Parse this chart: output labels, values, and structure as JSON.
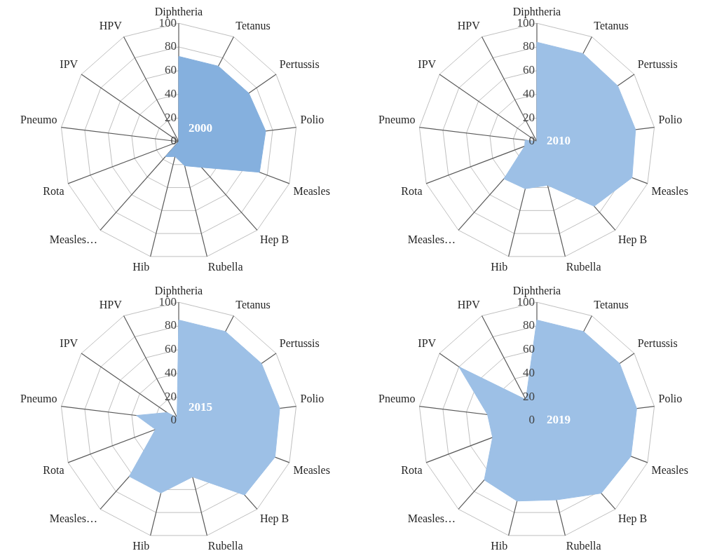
{
  "chart_data": [
    {
      "type": "radar",
      "categories": [
        "Diphtheria",
        "Tetanus",
        "Pertussis",
        "Polio",
        "Measles",
        "Hep B",
        "Rubella",
        "Hib",
        "Measles…",
        "Rota",
        "Pneumo",
        "IPV",
        "HPV"
      ],
      "series": [
        {
          "name": "2000",
          "color": "#85b0de",
          "values": [
            72,
            72,
            72,
            74,
            73,
            29,
            21,
            13,
            17,
            0,
            0,
            0,
            0
          ]
        }
      ],
      "ylim": [
        0,
        100
      ],
      "yticks": [
        0,
        20,
        40,
        60,
        80,
        100
      ],
      "grid": true
    },
    {
      "type": "radar",
      "categories": [
        "Diphtheria",
        "Tetanus",
        "Pertussis",
        "Polio",
        "Measles",
        "Hep B",
        "Rubella",
        "Hib",
        "Measles…",
        "Rota",
        "Pneumo",
        "IPV",
        "HPV"
      ],
      "series": [
        {
          "name": "2010",
          "color": "#9dc0e6",
          "values": [
            84,
            84,
            83,
            84,
            86,
            73,
            38,
            41,
            42,
            11,
            10,
            0,
            0
          ]
        }
      ],
      "ylim": [
        0,
        100
      ],
      "yticks": [
        0,
        20,
        40,
        60,
        80,
        100
      ],
      "grid": true
    },
    {
      "type": "radar",
      "categories": [
        "Diphtheria",
        "Tetanus",
        "Pertussis",
        "Polio",
        "Measles",
        "Hep B",
        "Rubella",
        "Hib",
        "Measles…",
        "Rota",
        "Pneumo",
        "IPV",
        "HPV"
      ],
      "series": [
        {
          "name": "2015",
          "color": "#9dc0e6",
          "values": [
            85,
            85,
            85,
            86,
            87,
            84,
            49,
            63,
            63,
            21,
            36,
            12,
            3
          ]
        }
      ],
      "ylim": [
        0,
        100
      ],
      "yticks": [
        0,
        20,
        40,
        60,
        80,
        100
      ],
      "grid": true
    },
    {
      "type": "radar",
      "categories": [
        "Diphtheria",
        "Tetanus",
        "Pertussis",
        "Polio",
        "Measles",
        "Hep B",
        "Rubella",
        "Hib",
        "Measles…",
        "Rota",
        "Pneumo",
        "IPV",
        "HPV"
      ],
      "series": [
        {
          "name": "2019",
          "color": "#9dc0e6",
          "values": [
            85,
            85,
            85,
            85,
            85,
            82,
            69,
            70,
            67,
            40,
            42,
            80,
            20
          ]
        }
      ],
      "ylim": [
        0,
        100
      ],
      "yticks": [
        0,
        20,
        40,
        60,
        80,
        100
      ],
      "grid": true
    }
  ]
}
